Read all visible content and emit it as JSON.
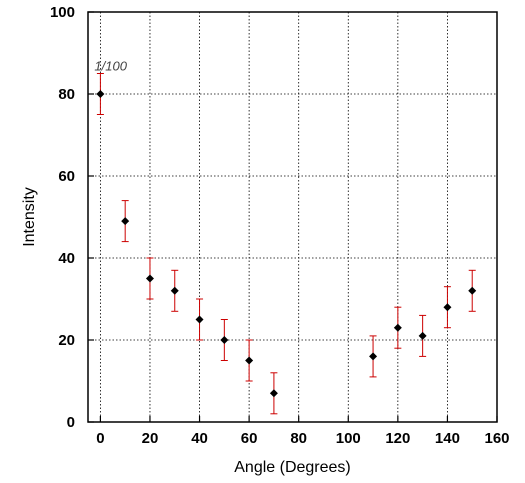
{
  "chart_data": {
    "type": "scatter",
    "title": "",
    "xlabel": "Angle (Degrees)",
    "ylabel": "Intensity",
    "xlim": [
      -5,
      160
    ],
    "ylim": [
      0,
      100
    ],
    "x_ticks": [
      0,
      20,
      40,
      60,
      80,
      100,
      120,
      140,
      160
    ],
    "y_ticks": [
      0,
      20,
      40,
      60,
      80,
      100
    ],
    "grid": true,
    "annotations": [
      {
        "text": "1/100",
        "x": 0,
        "y": 85
      }
    ],
    "series": [
      {
        "x": [
          0,
          10,
          20,
          30,
          40,
          50,
          60,
          70,
          110,
          120,
          130,
          140,
          150
        ],
        "y": [
          80,
          49,
          35,
          32,
          25,
          20,
          15,
          7,
          16,
          23,
          21,
          28,
          32
        ],
        "error": 5,
        "marker_color": "#000000",
        "error_bar_color": "#cc0000"
      }
    ]
  }
}
